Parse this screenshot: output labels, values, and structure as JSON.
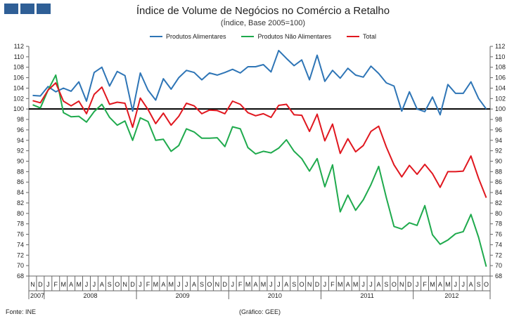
{
  "logo": {
    "blocks": 3,
    "color": "#2f5f96"
  },
  "title": "Índice de Volume de Negócios no Comércio a Retalho",
  "subtitle": "(Índice, Base 2005=100)",
  "source": "Fonte: INE",
  "credit": "(Gráfico: GEE)",
  "chart_data": {
    "type": "line",
    "title": "Índice de Volume de Negócios no Comércio a Retalho",
    "subtitle": "(Índice, Base 2005=100)",
    "xlabel": "",
    "ylabel": "",
    "ylim": [
      68,
      112
    ],
    "yticks": [
      68,
      70,
      72,
      74,
      76,
      78,
      80,
      82,
      84,
      86,
      88,
      90,
      92,
      94,
      96,
      98,
      100,
      102,
      104,
      106,
      108,
      110,
      112
    ],
    "reference_line": 100,
    "grid": false,
    "legend_position": "top",
    "months": [
      "N",
      "D",
      "J",
      "F",
      "M",
      "A",
      "M",
      "J",
      "J",
      "A",
      "S",
      "O",
      "N",
      "D",
      "J",
      "F",
      "M",
      "A",
      "M",
      "J",
      "J",
      "A",
      "S",
      "O",
      "N",
      "D",
      "J",
      "F",
      "M",
      "A",
      "M",
      "J",
      "J",
      "A",
      "S",
      "O",
      "N",
      "D",
      "J",
      "F",
      "M",
      "A",
      "M",
      "J",
      "J",
      "A",
      "S",
      "O",
      "N",
      "D",
      "J",
      "F",
      "M",
      "A",
      "M",
      "J",
      "J",
      "A",
      "S",
      "O"
    ],
    "years": [
      {
        "label": "2007",
        "start": 0,
        "end": 1
      },
      {
        "label": "2008",
        "start": 2,
        "end": 13
      },
      {
        "label": "2009",
        "start": 14,
        "end": 25
      },
      {
        "label": "2010",
        "start": 26,
        "end": 37
      },
      {
        "label": "2011",
        "start": 38,
        "end": 49
      },
      {
        "label": "2012",
        "start": 50,
        "end": 59
      }
    ],
    "series": [
      {
        "name": "Produtos Alimentares",
        "color": "#2e75b6",
        "values": [
          102.6,
          102.5,
          104.3,
          103.3,
          104.0,
          103.4,
          105.2,
          101.5,
          107.0,
          108.0,
          104.4,
          107.2,
          106.4,
          99.6,
          106.9,
          103.6,
          101.7,
          105.8,
          103.8,
          106.0,
          107.4,
          107.0,
          105.6,
          106.9,
          106.5,
          107.0,
          107.6,
          106.9,
          108.1,
          108.1,
          108.5,
          107.1,
          111.2,
          109.7,
          108.3,
          109.4,
          105.6,
          110.3,
          105.3,
          107.4,
          105.9,
          107.8,
          106.5,
          106.1,
          108.2,
          106.8,
          105.0,
          104.4,
          99.6,
          103.3,
          100.0,
          99.5,
          102.3,
          98.9,
          104.7,
          103.0,
          103.0,
          105.2,
          102.0,
          100.0
        ]
      },
      {
        "name": "Produtos Não Alimentares",
        "color": "#1faa4d",
        "values": [
          100.8,
          100.2,
          103.6,
          106.5,
          99.3,
          98.5,
          98.6,
          97.5,
          99.5,
          100.9,
          98.4,
          96.9,
          97.7,
          94.0,
          98.3,
          97.6,
          94.0,
          94.2,
          91.9,
          93.0,
          96.2,
          95.6,
          94.4,
          94.4,
          94.5,
          92.8,
          96.6,
          96.2,
          92.6,
          91.4,
          91.9,
          91.6,
          92.5,
          94.1,
          91.9,
          90.5,
          88.1,
          90.5,
          85.1,
          89.3,
          80.3,
          83.5,
          80.6,
          82.6,
          85.5,
          89.0,
          83.0,
          77.5,
          77.0,
          78.2,
          77.7,
          81.5,
          75.9,
          74.1,
          74.9,
          76.1,
          76.5,
          79.8,
          75.4,
          69.8
        ]
      },
      {
        "name": "Total",
        "color": "#e0171f",
        "values": [
          101.6,
          101.2,
          103.6,
          105.0,
          101.5,
          100.6,
          101.5,
          99.1,
          102.8,
          104.2,
          100.9,
          101.3,
          101.1,
          96.5,
          102.1,
          99.9,
          97.2,
          99.2,
          96.9,
          98.6,
          101.1,
          100.6,
          99.1,
          99.8,
          99.7,
          99.1,
          101.5,
          100.9,
          99.3,
          98.7,
          99.1,
          98.4,
          100.7,
          100.9,
          98.9,
          98.8,
          95.7,
          99.0,
          93.9,
          97.1,
          91.5,
          94.3,
          91.8,
          93.0,
          95.7,
          96.7,
          92.7,
          89.3,
          87.0,
          89.2,
          87.5,
          89.4,
          87.6,
          85.0,
          88.0,
          88.0,
          88.1,
          91.0,
          86.7,
          83.0
        ]
      }
    ]
  }
}
